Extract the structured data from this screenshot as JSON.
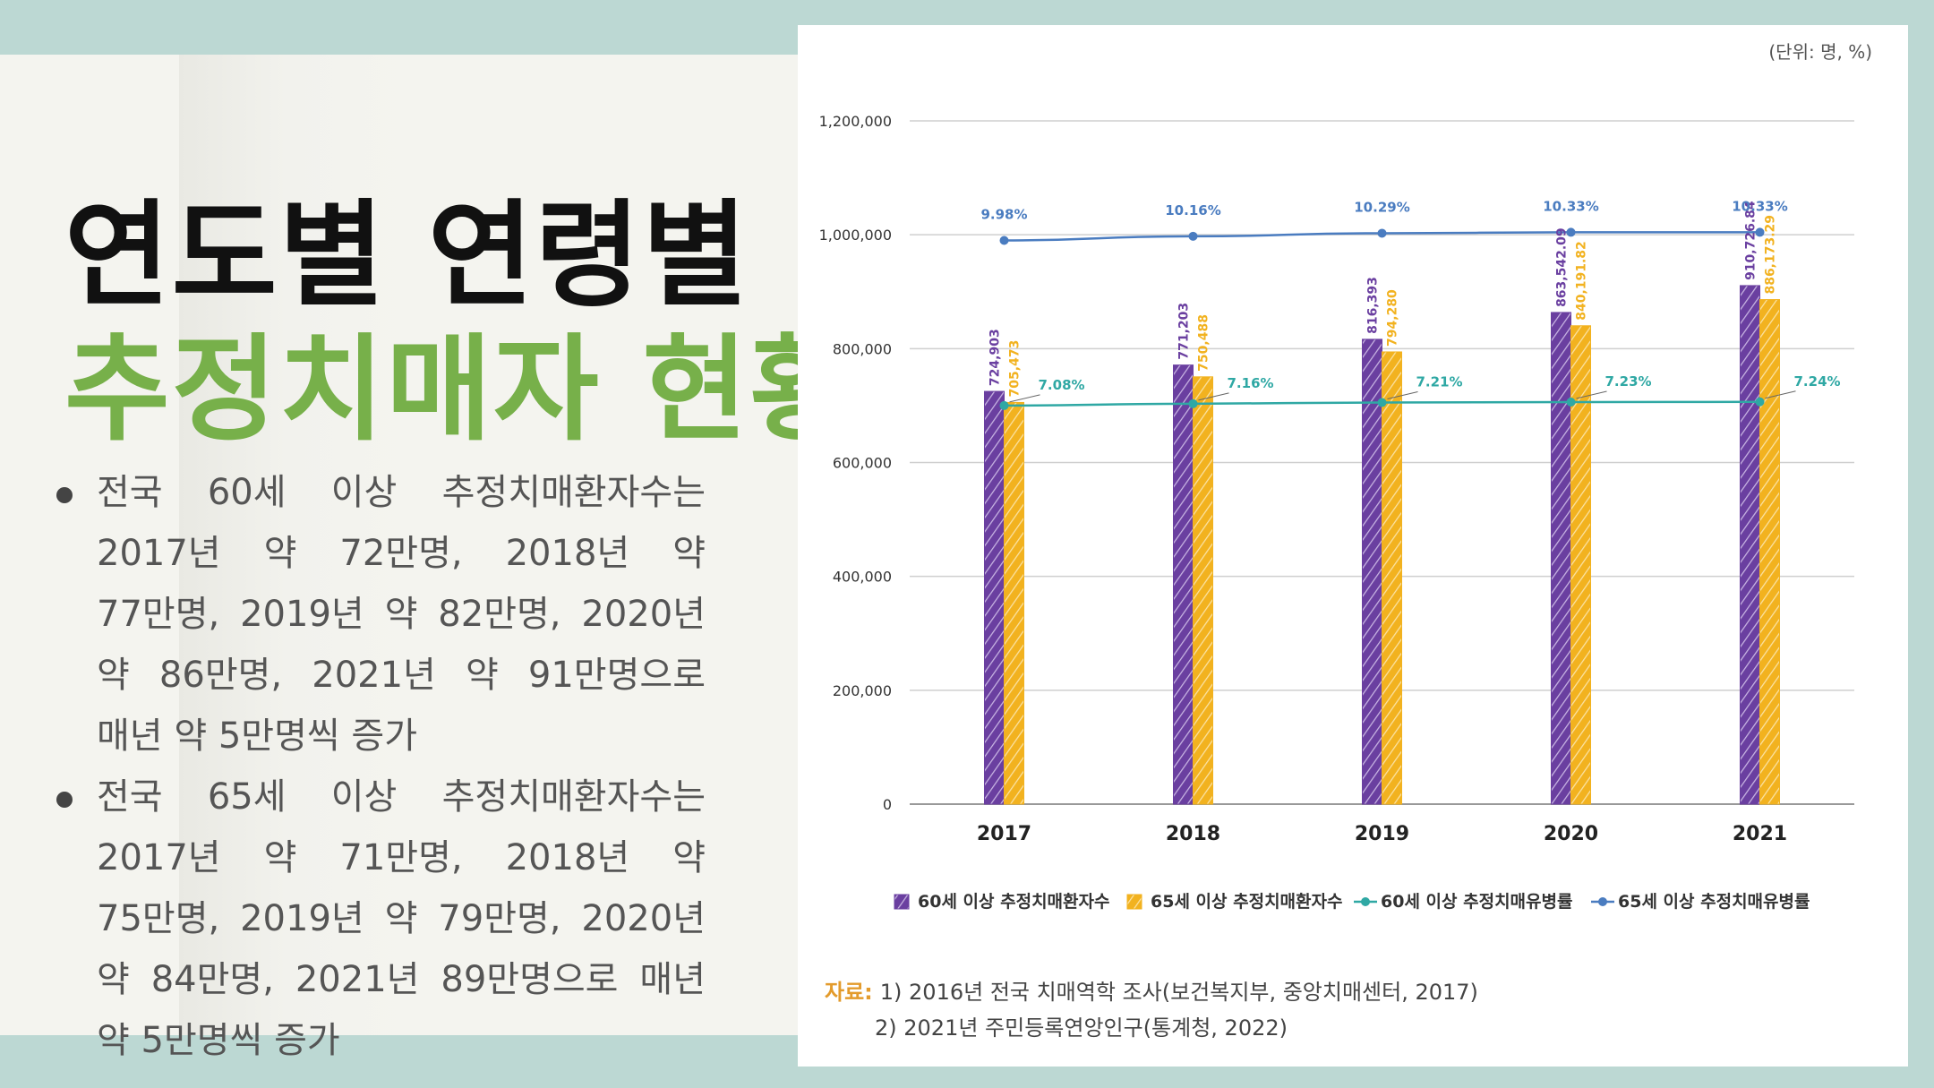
{
  "slide": {
    "title_line1": "연도별 연령별",
    "title_line2": "추정치매자 현황",
    "bullets": [
      "전국 60세 이상 추정치매환자수는 2017년 약 72만명, 2018년 약 77만명, 2019년 약 82만명, 2020년 약 86만명, 2021년 약 91만명으로 매년 약 5만명씩 증가",
      "전국 65세 이상 추정치매환자수는 2017년 약 71만명, 2018년 약 75만명, 2019년 약 79만명, 2020년 약 84만명, 2021년 89만명으로 매년 약 5만명씩 증가"
    ],
    "colors": {
      "title_green": "#77b04a",
      "background": "#bcd8d3"
    }
  },
  "chart_data": {
    "type": "bar",
    "unit_label": "(단위: 명, %)",
    "categories": [
      "2017",
      "2018",
      "2019",
      "2020",
      "2021"
    ],
    "series": [
      {
        "name": "60세 이상 추정치매환자수",
        "type": "bar",
        "color": "#6a3fa0",
        "values": [
          724903,
          771203,
          816393,
          863542.09,
          910726.84
        ],
        "labels": [
          "724,903",
          "771,203",
          "816,393",
          "863,542.09",
          "910,726.84"
        ]
      },
      {
        "name": "65세 이상 추정치매환자수",
        "type": "bar",
        "color": "#f2b21f",
        "values": [
          705473,
          750488,
          794280,
          840191.82,
          886173.29
        ],
        "labels": [
          "705,473",
          "750,488",
          "794,280",
          "840,191.82",
          "886,173.29"
        ]
      },
      {
        "name": "60세 이상 추정치매유병률",
        "type": "line",
        "color": "#2fa8a4",
        "values": [
          7.08,
          7.16,
          7.21,
          7.23,
          7.24
        ],
        "labels": [
          "7.08%",
          "7.16%",
          "7.21%",
          "7.23%",
          "7.24%"
        ]
      },
      {
        "name": "65세 이상 추정치매유병률",
        "type": "line",
        "color": "#4a7cc0",
        "values": [
          9.98,
          10.16,
          10.29,
          10.33,
          10.33
        ],
        "labels": [
          "9.98%",
          "10.16%",
          "10.29%",
          "10.33%",
          "10.33%"
        ]
      }
    ],
    "y_axis": {
      "ylim": [
        0,
        1200000
      ],
      "ticks": [
        0,
        200000,
        400000,
        600000,
        800000,
        1000000,
        1200000
      ],
      "tick_labels": [
        "0",
        "200,000",
        "400,000",
        "600,000",
        "800,000",
        "1,000,000",
        "1,200,000"
      ]
    },
    "grid": true,
    "legend_position": "bottom",
    "source_label": "자료:",
    "sources": [
      "1) 2016년 전국 치매역학 조사(보건복지부, 중앙치매센터, 2017)",
      "2) 2021년 주민등록연앙인구(통계청, 2022)"
    ]
  }
}
